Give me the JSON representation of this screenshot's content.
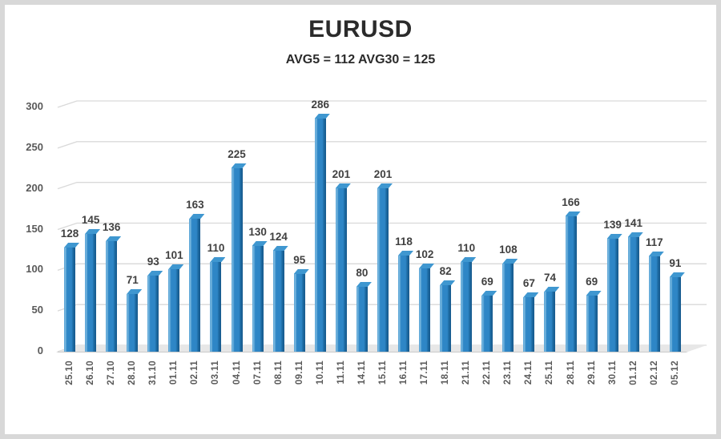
{
  "header": {
    "title": "EURUSD",
    "subtitle": "AVG5 = 112 AVG30 = 125"
  },
  "colors": {
    "bar_main": "#2e86c6",
    "bar_light": "#7fbce2",
    "bar_dark": "#17598c",
    "bar_top": "#3f97d0",
    "gridline": "#d9d9d9",
    "frame_border": "#d8d8d8",
    "title_color": "#2b2b2b",
    "value_color": "#404040",
    "axis_color": "#595959"
  },
  "chart_data": {
    "type": "bar",
    "style": "3d-column",
    "title": "EURUSD",
    "subtitle": "AVG5 = 112 AVG30 = 125",
    "categories": [
      "25.10",
      "26.10",
      "27.10",
      "28.10",
      "31.10",
      "01.11",
      "02.11",
      "03.11",
      "04.11",
      "07.11",
      "08.11",
      "09.11",
      "10.11",
      "11.11",
      "14.11",
      "15.11",
      "16.11",
      "17.11",
      "18.11",
      "21.11",
      "22.11",
      "23.11",
      "24.11",
      "25.11",
      "28.11",
      "29.11",
      "30.11",
      "01.12",
      "02.12",
      "05.12"
    ],
    "values": [
      128,
      145,
      136,
      71,
      93,
      101,
      163,
      110,
      225,
      130,
      124,
      95,
      286,
      201,
      80,
      201,
      118,
      102,
      82,
      110,
      69,
      108,
      67,
      74,
      166,
      69,
      139,
      141,
      117,
      91
    ],
    "xlabel": "",
    "ylabel": "",
    "ylim": [
      0,
      300
    ],
    "yticks": [
      0,
      50,
      100,
      150,
      200,
      250,
      300
    ],
    "grid": true,
    "legend": false,
    "data_labels": true
  }
}
